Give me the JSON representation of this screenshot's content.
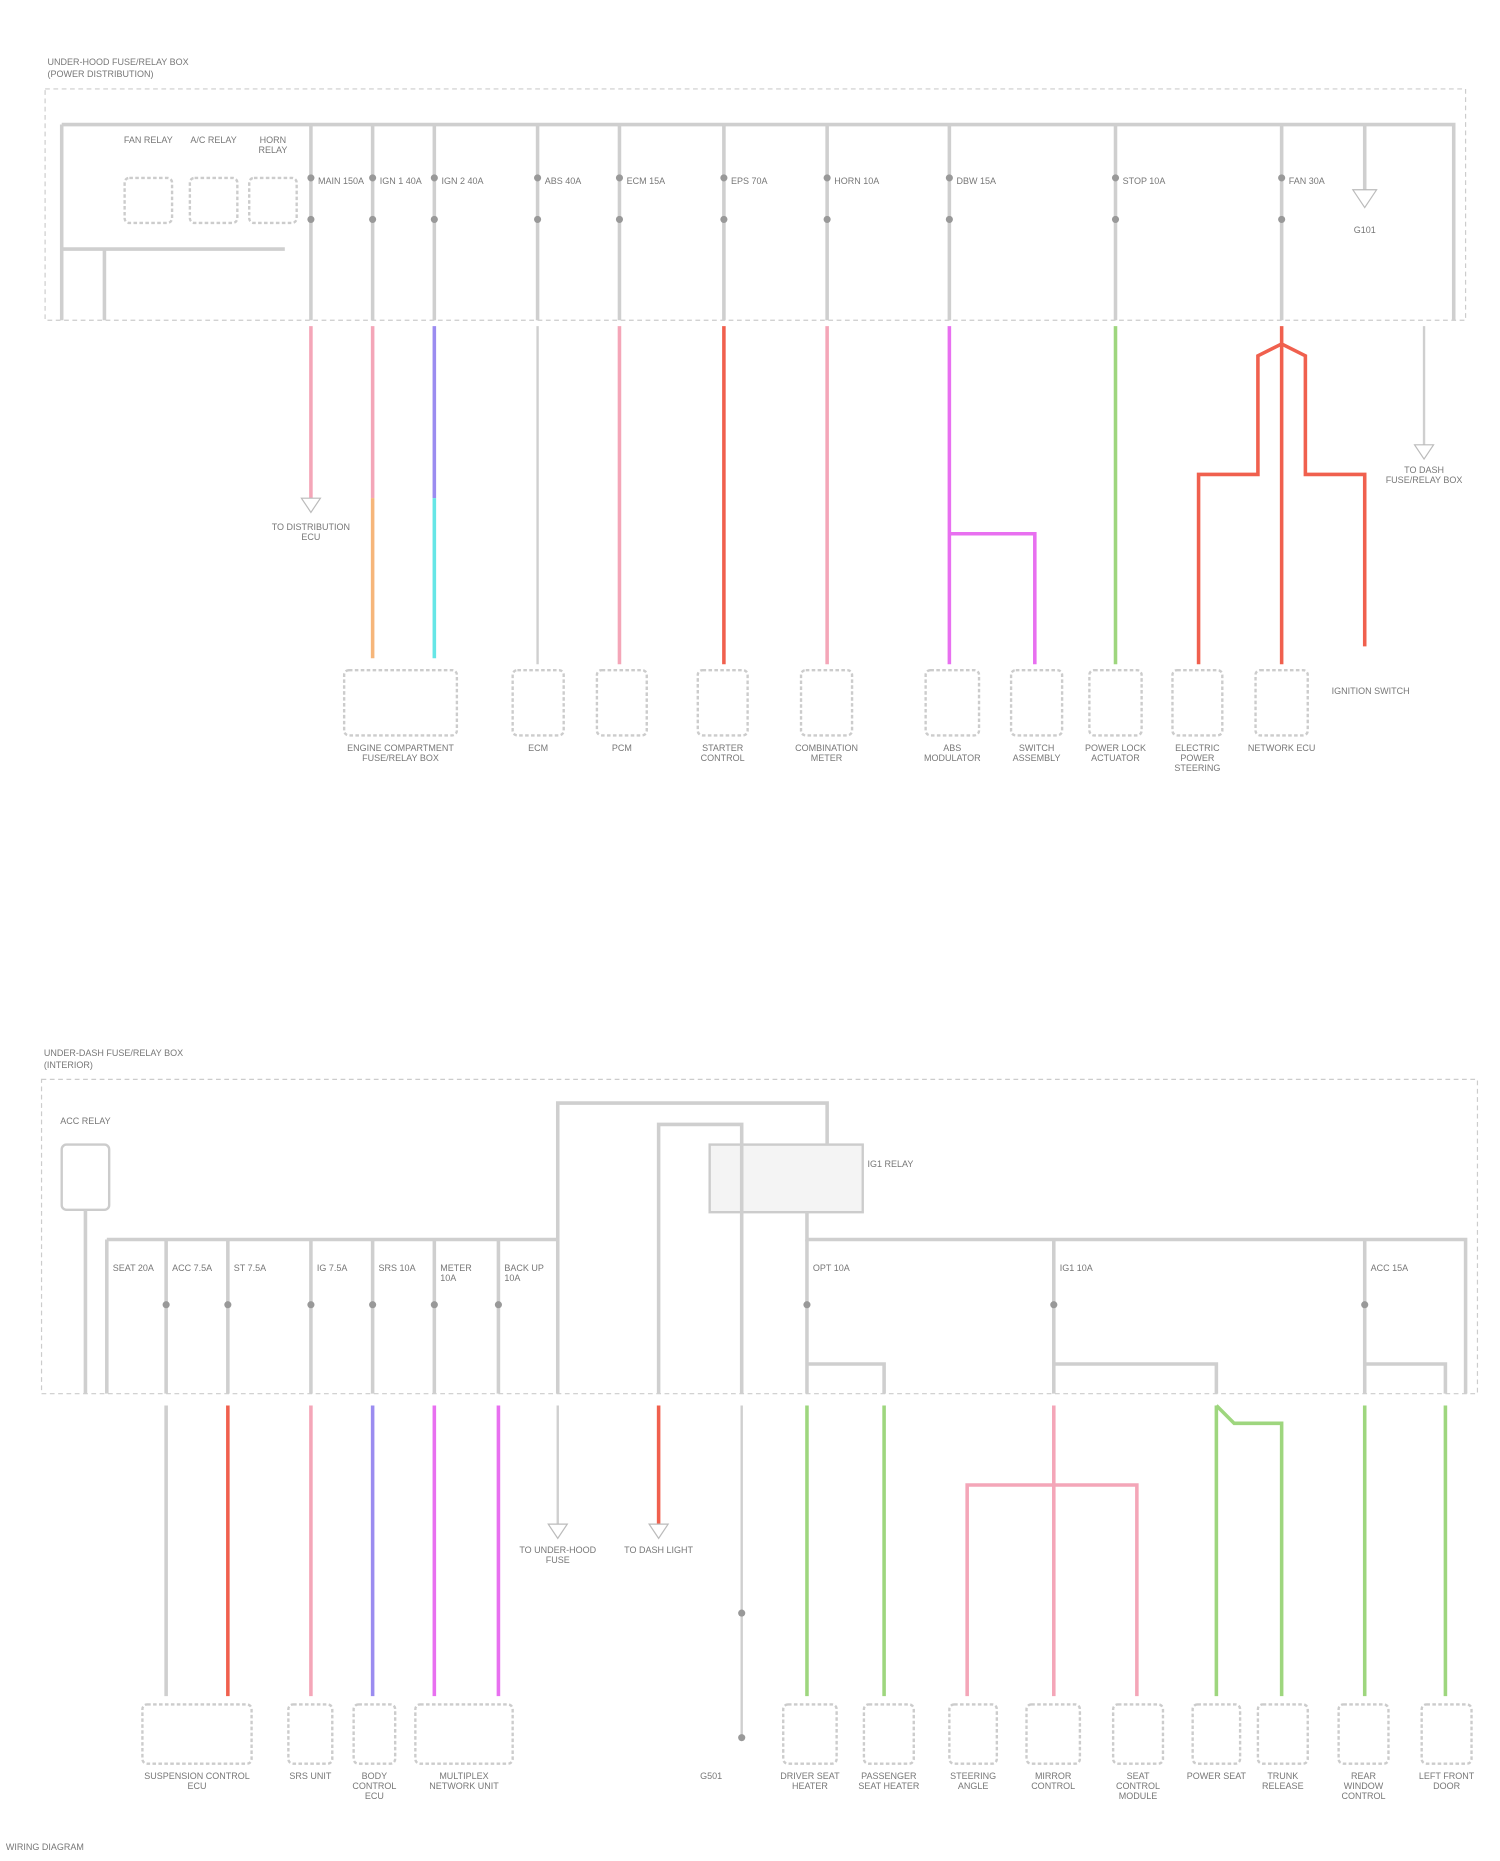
{
  "top_section": {
    "title_line1": "UNDER-HOOD FUSE/RELAY BOX",
    "title_line2": "(POWER DISTRIBUTION)",
    "relays": [
      "FAN RELAY",
      "A/C RELAY",
      "HORN RELAY"
    ],
    "fuses": [
      "MAIN 150A",
      "IGN 1 40A",
      "IGN 2 40A",
      "ABS 40A",
      "ECM 15A",
      "EPS 70A",
      "HORN 10A",
      "DBW 15A",
      "STOP 10A",
      "FAN 30A"
    ],
    "ground_label": "G101",
    "components": [
      "ENGINE COMPARTMENT FUSE/RELAY BOX",
      "ECM",
      "PCM",
      "STARTER CONTROL",
      "COMBINATION METER",
      "ABS MODULATOR",
      "SWITCH ASSEMBLY",
      "POWER LOCK ACTUATOR",
      "ELECTRIC POWER STEERING",
      "NETWORK ECU",
      "IGNITION SWITCH"
    ],
    "arrow_labels": [
      "TO DISTRIBUTION ECU",
      "TO DASH FUSE/RELAY BOX"
    ]
  },
  "bottom_section": {
    "title_line1": "UNDER-DASH FUSE/RELAY BOX",
    "title_line2": "(INTERIOR)",
    "relay_label": "ACC RELAY",
    "switch_label": "IG1 RELAY",
    "fuses": [
      "ACC 7.5A",
      "ST 7.5A",
      "IG 7.5A",
      "SRS 10A",
      "METER 10A",
      "BACK UP 10A",
      "OPT 10A",
      "IG1 10A",
      "ACC 15A",
      "SEAT 20A"
    ],
    "components": [
      "SUSPENSION CONTROL ECU",
      "SRS UNIT",
      "BODY CONTROL ECU",
      "MULTIPLEX NETWORK UNIT",
      "DRIVER SEAT HEATER",
      "PASSENGER SEAT HEATER",
      "STEERING ANGLE",
      "MIRROR CONTROL",
      "SEAT CONTROL MODULE",
      "POWER SEAT",
      "TRUNK RELEASE",
      "REAR WINDOW CONTROL",
      "LEFT FRONT DOOR"
    ],
    "arrow_labels": [
      "TO UNDER-HOOD FUSE",
      "TO DASH LIGHT"
    ],
    "ground_label": "G501"
  },
  "footer": "WIRING DIAGRAM",
  "colors": {
    "frame": "#c8c8c8",
    "pink": "#f4a6b8",
    "red": "#f0604e",
    "purple": "#9b8cf0",
    "magenta": "#e870f0",
    "green": "#9ed67e",
    "orange": "#f6b67a",
    "cyan": "#66e6e6",
    "gray": "#cfcfcf"
  }
}
